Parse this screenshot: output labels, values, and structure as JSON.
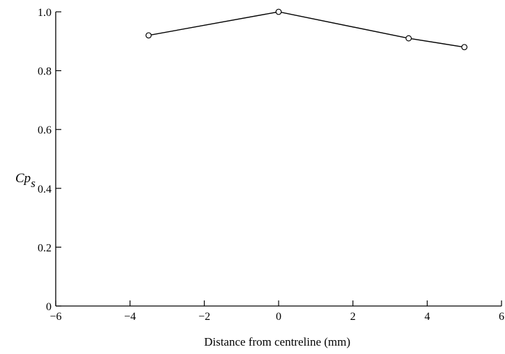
{
  "chart_data": {
    "type": "line",
    "title": "",
    "xlabel": "Distance from centreline (mm)",
    "ylabel_main": "Cp",
    "ylabel_sub": "s",
    "xlim": [
      -6,
      6
    ],
    "ylim": [
      0,
      1.0
    ],
    "xticks": [
      -6,
      -4,
      -2,
      0,
      2,
      4,
      6
    ],
    "xtick_labels": [
      "−6",
      "−4",
      "−2",
      "0",
      "2",
      "4",
      "6"
    ],
    "yticks": [
      0,
      0.2,
      0.4,
      0.6,
      0.8,
      1.0
    ],
    "ytick_labels": [
      "0",
      "0.2",
      "0.4",
      "0.6",
      "0.8",
      "1.0"
    ],
    "grid": false,
    "marker": "open-circle",
    "line_color": "#000000",
    "series": [
      {
        "x": [
          -3.5,
          0,
          3.5,
          5
        ],
        "y": [
          0.92,
          1.0,
          0.91,
          0.88
        ]
      }
    ]
  }
}
